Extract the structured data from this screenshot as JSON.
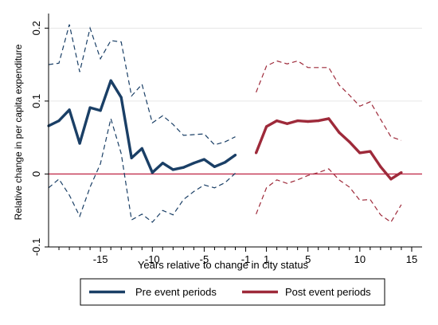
{
  "chart_data": {
    "type": "line",
    "ylabel": "Relative change in per capita expenditure",
    "xlabel": "Years relative to change in city status",
    "xlim": [
      -20,
      16
    ],
    "ylim": [
      -0.1,
      0.22
    ],
    "x_ticks": [
      {
        "value": -15,
        "label": "-15"
      },
      {
        "value": -10,
        "label": "-10"
      },
      {
        "value": -5,
        "label": "-5"
      },
      {
        "value": -1,
        "label": "-1"
      },
      {
        "value": 1,
        "label": "1"
      },
      {
        "value": 5,
        "label": "5"
      },
      {
        "value": 10,
        "label": "10"
      },
      {
        "value": 15,
        "label": "15"
      }
    ],
    "x_minor_ticks": [
      -19,
      -18,
      -17,
      -16,
      -14,
      -13,
      -12,
      -11,
      -9,
      -8,
      -7,
      -6,
      -4,
      -3,
      -2,
      2,
      3,
      4,
      6,
      7,
      8,
      9,
      11,
      12,
      13,
      14
    ],
    "y_ticks": [
      {
        "value": -0.1,
        "label": "-0.1"
      },
      {
        "value": 0,
        "label": "0"
      },
      {
        "value": 0.1,
        "label": "0.1"
      },
      {
        "value": 0.2,
        "label": "0.2"
      }
    ],
    "reference_line": {
      "y": 0,
      "color": "#c2314f"
    },
    "grid": "horizontal",
    "legend_position": "bottom",
    "series": [
      {
        "name": "Pre event periods",
        "color": "#1a3f66",
        "x": [
          -20,
          -19,
          -18,
          -17,
          -16,
          -15,
          -14,
          -13,
          -12,
          -11,
          -10,
          -9,
          -8,
          -7,
          -6,
          -5,
          -4,
          -3,
          -2,
          -1
        ],
        "y": [
          0.066,
          0.073,
          0.088,
          0.042,
          0.091,
          0.087,
          0.128,
          0.105,
          0.022,
          0.035,
          0.002,
          0.015,
          0.006,
          0.009,
          0.015,
          0.02,
          0.01,
          0.016,
          0.026,
          null
        ],
        "upper": [
          0.15,
          0.152,
          0.205,
          0.14,
          0.2,
          0.158,
          0.183,
          0.181,
          0.107,
          0.123,
          0.07,
          0.08,
          0.068,
          0.053,
          0.054,
          0.055,
          0.04,
          0.044,
          0.051,
          null
        ],
        "lower": [
          -0.019,
          -0.007,
          -0.029,
          -0.058,
          -0.018,
          0.014,
          0.076,
          0.028,
          -0.063,
          -0.055,
          -0.066,
          -0.05,
          -0.056,
          -0.035,
          -0.024,
          -0.015,
          -0.019,
          -0.012,
          0.001,
          null
        ]
      },
      {
        "name": "Post event periods",
        "color": "#9e2a3a",
        "x": [
          0,
          1,
          2,
          3,
          4,
          5,
          6,
          7,
          8,
          9,
          10,
          11,
          12,
          13,
          14,
          15
        ],
        "y": [
          0.029,
          0.065,
          0.073,
          0.069,
          0.073,
          0.072,
          0.073,
          0.076,
          0.057,
          0.044,
          0.029,
          0.031,
          0.01,
          -0.007,
          0.002,
          null
        ],
        "upper": [
          0.112,
          0.148,
          0.155,
          0.151,
          0.155,
          0.146,
          0.146,
          0.146,
          0.122,
          0.108,
          0.093,
          0.099,
          0.075,
          0.051,
          0.046,
          null
        ],
        "lower": [
          -0.055,
          -0.019,
          -0.008,
          -0.013,
          -0.008,
          -0.002,
          0.002,
          0.007,
          -0.008,
          -0.018,
          -0.036,
          -0.035,
          -0.056,
          -0.066,
          -0.042,
          null
        ]
      }
    ]
  }
}
